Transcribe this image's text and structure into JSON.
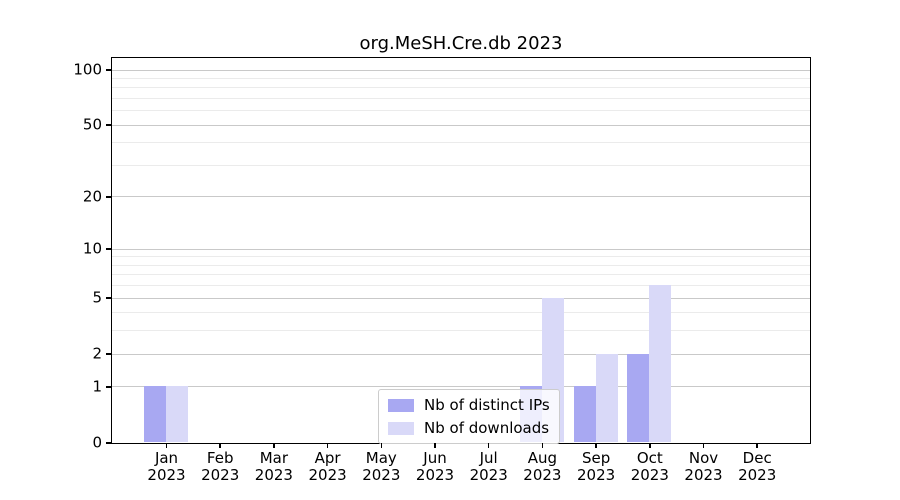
{
  "chart_data": {
    "type": "bar",
    "title": "org.MeSH.Cre.db 2023",
    "categories": [
      "Jan",
      "Feb",
      "Mar",
      "Apr",
      "May",
      "Jun",
      "Jul",
      "Aug",
      "Sep",
      "Oct",
      "Nov",
      "Dec"
    ],
    "category_sublabel": "2023",
    "series": [
      {
        "name": "Nb of distinct IPs",
        "color": "#a8a8f2",
        "values": [
          1,
          0,
          0,
          0,
          0,
          0,
          0,
          1,
          1,
          2,
          0,
          0
        ]
      },
      {
        "name": "Nb of downloads",
        "color": "#d9d9f8",
        "values": [
          1,
          0,
          0,
          0,
          0,
          0,
          0,
          5,
          2,
          6,
          0,
          0
        ]
      }
    ],
    "xlabel": "",
    "ylabel": "",
    "ylim": [
      0,
      100
    ],
    "yticks": [
      0,
      1,
      2,
      5,
      10,
      20,
      50,
      100
    ],
    "minor_ytick_factors": [
      3,
      4,
      6,
      7,
      8,
      9
    ],
    "scale": "log1p",
    "grid": "horizontal-major-and-minor",
    "legend_position": "inside-bottom-center",
    "colors": {
      "frame": "#000000",
      "grid_major": "#c9c9c9",
      "grid_minor": "#ebebeb",
      "background": "#ffffff"
    }
  }
}
